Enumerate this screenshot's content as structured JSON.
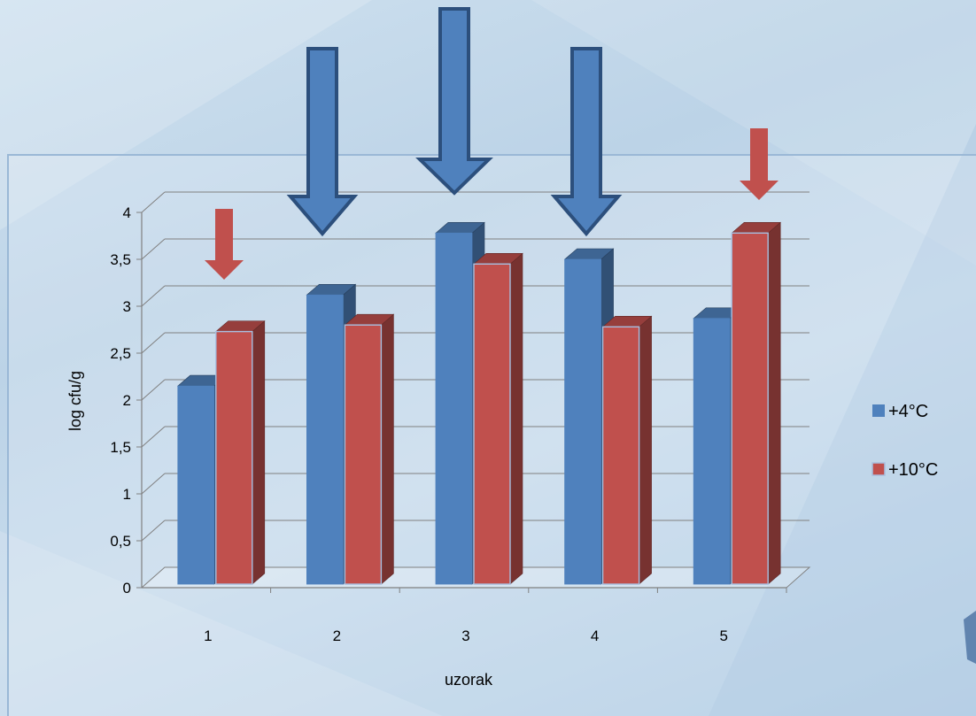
{
  "chart_data": {
    "type": "bar",
    "style": "3d-clustered-column",
    "categories": [
      "1",
      "2",
      "3",
      "4",
      "5"
    ],
    "series": [
      {
        "name": "+4°C",
        "color": "#4f81bd",
        "values": [
          2.15,
          3.12,
          3.78,
          3.5,
          2.87
        ]
      },
      {
        "name": "+10°C",
        "color": "#c0504d",
        "values": [
          2.73,
          2.8,
          3.45,
          2.78,
          3.78
        ]
      }
    ],
    "y_ticks": [
      "0",
      "0,5",
      "1",
      "1,5",
      "2",
      "2,5",
      "3",
      "3,5",
      "4"
    ],
    "ylim": [
      0,
      4
    ],
    "xlabel": "uzorak",
    "ylabel": "log cfu/g",
    "grid": true,
    "legend_position": "right",
    "annotations": [
      {
        "type": "down-arrow",
        "category": "1",
        "color": "#c0504d"
      },
      {
        "type": "down-arrow",
        "category": "2",
        "color": "#4f81bd"
      },
      {
        "type": "down-arrow",
        "category": "3",
        "color": "#4f81bd"
      },
      {
        "type": "down-arrow",
        "category": "4",
        "color": "#4f81bd"
      },
      {
        "type": "down-arrow",
        "category": "5",
        "color": "#c0504d"
      }
    ]
  }
}
